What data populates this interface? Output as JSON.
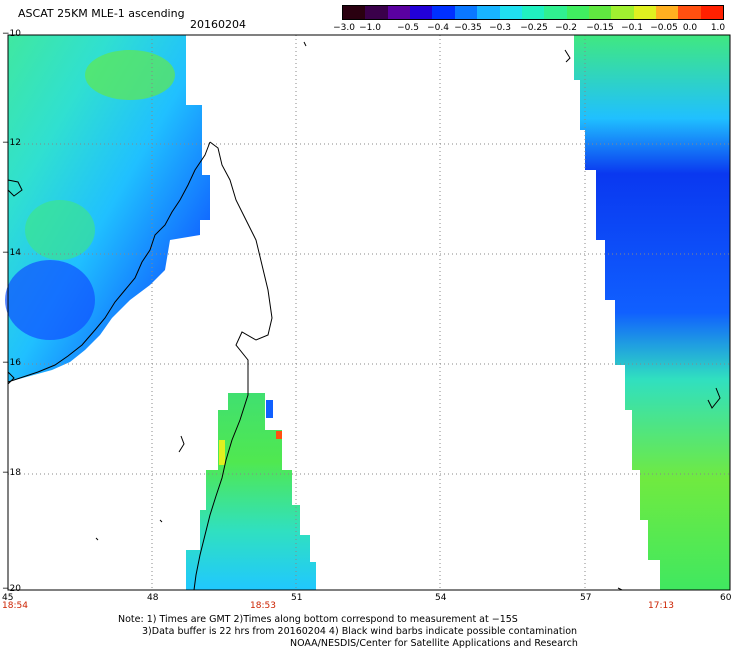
{
  "header": {
    "title": "ASCAT 25KM MLE-1 ascending",
    "date": "20160204"
  },
  "colorbar": {
    "colors": [
      "#2a0010",
      "#3a004a",
      "#5a00a0",
      "#2200d8",
      "#0030ff",
      "#0a78ff",
      "#18b4ff",
      "#20e0f0",
      "#20f0c0",
      "#30f090",
      "#40ee60",
      "#60e840",
      "#a0f030",
      "#e0f020",
      "#ffb020",
      "#ff5010",
      "#ff2000"
    ],
    "ticks": [
      "−3.0",
      "−1.0",
      "−0.5",
      "−0.4",
      "−0.35",
      "−0.3",
      "−0.25",
      "−0.2",
      "−0.15",
      "−0.1",
      "−0.05",
      "0.0",
      "1.0"
    ]
  },
  "axes": {
    "lat_labels": [
      "−10",
      "−12",
      "−14",
      "−16",
      "−18",
      "−20"
    ],
    "lon_labels": [
      "45",
      "48",
      "51",
      "54",
      "57",
      "60"
    ]
  },
  "pass_times": [
    "18:54",
    "18:53",
    "17:13"
  ],
  "footer": {
    "line1": "Note: 1) Times are GMT 2)Times along bottom correspond to measurement at −15S",
    "line2": "3)Data buffer is 22 hrs from 20160204 4) Black wind barbs indicate possible contamination",
    "line3": "NOAA/NESDIS/Center for Satellite Applications and Research"
  },
  "colors": {
    "grid": "#888888",
    "time_label": "#cc2200"
  }
}
